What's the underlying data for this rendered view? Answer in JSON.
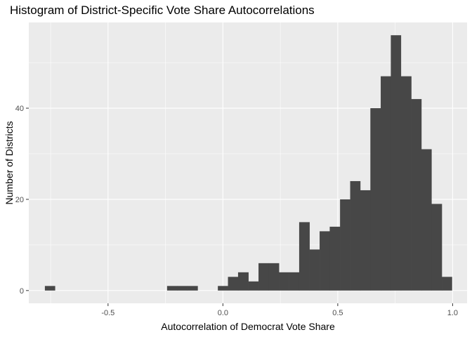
{
  "chart_data": {
    "type": "bar",
    "title": "Histogram of District-Specific Vote Share Autocorrelations",
    "xlabel": "Autocorrelation of Democrat Vote Share",
    "ylabel": "Number of Districts",
    "xlim": [
      -0.845,
      1.063
    ],
    "ylim": [
      -2.8,
      58.8
    ],
    "x_ticks": [
      -0.5,
      0.0,
      0.5,
      1.0
    ],
    "x_tick_labels": [
      "-0.5",
      "0.0",
      "0.5",
      "1.0"
    ],
    "y_ticks": [
      0,
      20,
      40
    ],
    "y_tick_labels": [
      "0",
      "20",
      "40"
    ],
    "grid": true,
    "bin_width": 0.0443,
    "bins": [
      {
        "start": -0.775,
        "end": -0.731,
        "count": 1
      },
      {
        "start": -0.243,
        "end": -0.199,
        "count": 1
      },
      {
        "start": -0.199,
        "end": -0.155,
        "count": 1
      },
      {
        "start": -0.155,
        "end": -0.11,
        "count": 1
      },
      {
        "start": -0.022,
        "end": 0.022,
        "count": 1
      },
      {
        "start": 0.022,
        "end": 0.066,
        "count": 3
      },
      {
        "start": 0.066,
        "end": 0.111,
        "count": 4
      },
      {
        "start": 0.111,
        "end": 0.155,
        "count": 2
      },
      {
        "start": 0.155,
        "end": 0.199,
        "count": 6
      },
      {
        "start": 0.199,
        "end": 0.244,
        "count": 6
      },
      {
        "start": 0.244,
        "end": 0.288,
        "count": 4
      },
      {
        "start": 0.288,
        "end": 0.332,
        "count": 4
      },
      {
        "start": 0.332,
        "end": 0.377,
        "count": 15
      },
      {
        "start": 0.377,
        "end": 0.421,
        "count": 9
      },
      {
        "start": 0.421,
        "end": 0.465,
        "count": 13
      },
      {
        "start": 0.465,
        "end": 0.51,
        "count": 14
      },
      {
        "start": 0.51,
        "end": 0.554,
        "count": 20
      },
      {
        "start": 0.554,
        "end": 0.598,
        "count": 24
      },
      {
        "start": 0.598,
        "end": 0.642,
        "count": 22
      },
      {
        "start": 0.642,
        "end": 0.687,
        "count": 40
      },
      {
        "start": 0.687,
        "end": 0.731,
        "count": 47
      },
      {
        "start": 0.731,
        "end": 0.775,
        "count": 56
      },
      {
        "start": 0.775,
        "end": 0.82,
        "count": 47
      },
      {
        "start": 0.82,
        "end": 0.864,
        "count": 42
      },
      {
        "start": 0.864,
        "end": 0.908,
        "count": 31
      },
      {
        "start": 0.908,
        "end": 0.953,
        "count": 19
      },
      {
        "start": 0.953,
        "end": 0.997,
        "count": 3
      }
    ]
  },
  "colors": {
    "panel_background": "#ebebeb",
    "grid": "#ffffff",
    "bar_fill": "#474747",
    "tick_text": "#4d4d4d"
  }
}
